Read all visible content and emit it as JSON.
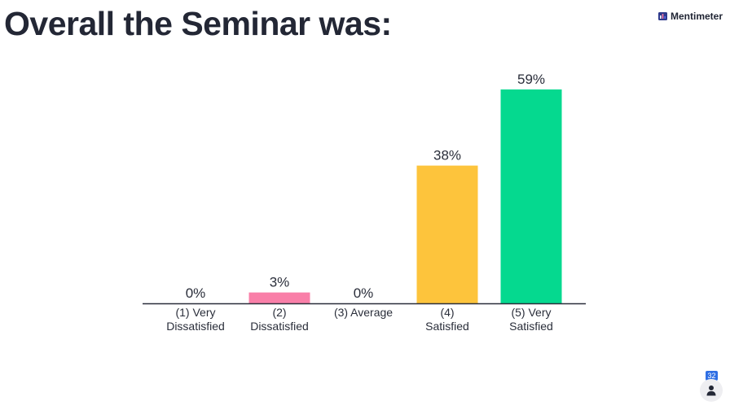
{
  "title": "Overall the Seminar was:",
  "brand": {
    "name": "Mentimeter",
    "icon": "mentimeter-logo-icon"
  },
  "participants": {
    "count": "32",
    "icon": "person-icon"
  },
  "chart_data": {
    "type": "bar",
    "title": "Overall the Seminar was:",
    "categories": [
      [
        "(1) Very",
        "Dissatisfied"
      ],
      [
        "(2)",
        "Dissatisfied"
      ],
      [
        "(3) Average"
      ],
      [
        "(4)",
        "Satisfied"
      ],
      [
        "(5) Very",
        "Satisfied"
      ]
    ],
    "values": [
      0,
      3,
      0,
      38,
      59
    ],
    "value_labels": [
      "0%",
      "3%",
      "0%",
      "38%",
      "59%"
    ],
    "colors": [
      "#5a6cf0",
      "#f97fa8",
      "#b7bccb",
      "#fdc43c",
      "#05d98f"
    ],
    "ylim": [
      0,
      59
    ],
    "grid": false,
    "legend": "none"
  }
}
